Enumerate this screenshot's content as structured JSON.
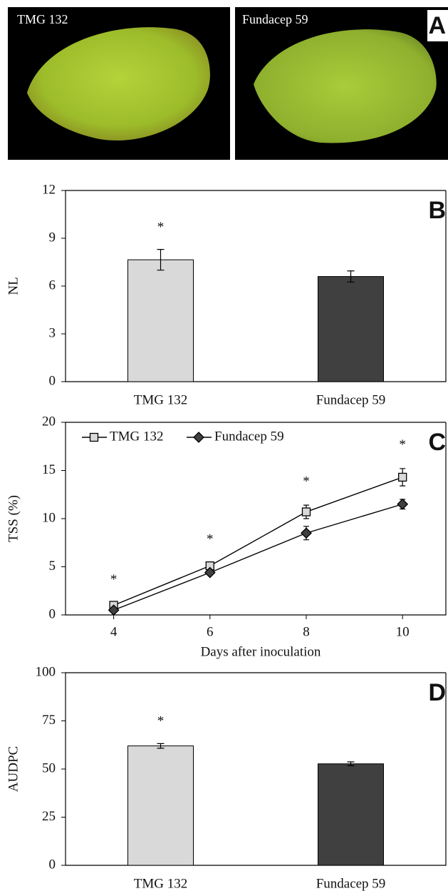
{
  "panel_a": {
    "panel_label": "A",
    "photo_labels": [
      "TMG 132",
      "Fundacep 59"
    ]
  },
  "chart_data": [
    {
      "type": "bar",
      "panel_label": "B",
      "y_label": "NL",
      "categories": [
        "TMG 132",
        "Fundacep 59"
      ],
      "values": [
        7.65,
        6.6
      ],
      "errors": [
        0.65,
        0.35
      ],
      "colors": [
        "#d9d9d9",
        "#404040"
      ],
      "significance": [
        "*",
        null
      ],
      "ylim": [
        0,
        12
      ],
      "yticks": [
        0,
        3,
        6,
        9,
        12
      ]
    },
    {
      "type": "line",
      "panel_label": "C",
      "y_label": "TSS (%)",
      "x_label": "Days after inoculation",
      "x": [
        4,
        6,
        8,
        10
      ],
      "series": [
        {
          "name": "TMG 132",
          "marker": "square",
          "color": "#d9d9d9",
          "values": [
            1.0,
            5.1,
            10.7,
            14.3
          ],
          "errors": [
            0.2,
            0.3,
            0.7,
            0.9
          ]
        },
        {
          "name": "Fundacep 59",
          "marker": "diamond",
          "color": "#404040",
          "values": [
            0.5,
            4.4,
            8.5,
            11.5
          ],
          "errors": [
            0.1,
            0.2,
            0.7,
            0.5
          ]
        }
      ],
      "significance": [
        "*",
        "*",
        "*",
        "*"
      ],
      "xlim": [
        3,
        10.9
      ],
      "xticks": [
        4,
        6,
        8,
        10
      ],
      "ylim": [
        0,
        20
      ],
      "yticks": [
        0,
        5,
        10,
        15,
        20
      ]
    },
    {
      "type": "bar",
      "panel_label": "D",
      "y_label": "AUDPC",
      "categories": [
        "TMG 132",
        "Fundacep 59"
      ],
      "values": [
        62,
        52.7
      ],
      "errors": [
        1.2,
        1.0
      ],
      "colors": [
        "#d9d9d9",
        "#404040"
      ],
      "significance": [
        "*",
        null
      ],
      "ylim": [
        0,
        100
      ],
      "yticks": [
        0,
        25,
        50,
        75,
        100
      ]
    }
  ]
}
